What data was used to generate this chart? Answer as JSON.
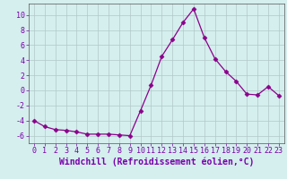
{
  "x": [
    0,
    1,
    2,
    3,
    4,
    5,
    6,
    7,
    8,
    9,
    10,
    11,
    12,
    13,
    14,
    15,
    16,
    17,
    18,
    19,
    20,
    21,
    22,
    23
  ],
  "y": [
    -4,
    -4.8,
    -5.2,
    -5.3,
    -5.5,
    -5.8,
    -5.8,
    -5.8,
    -5.9,
    -6.0,
    -2.7,
    0.7,
    4.5,
    6.7,
    9.0,
    10.8,
    7.0,
    4.2,
    2.5,
    1.2,
    -0.5,
    -0.6,
    0.5,
    -0.7
  ],
  "line_color": "#8B008B",
  "marker": "D",
  "marker_size": 2.5,
  "background_color": "#d5eeee",
  "grid_color": "#b0c8c8",
  "xlabel": "Windchill (Refroidissement éolien,°C)",
  "xlim": [
    -0.5,
    23.5
  ],
  "ylim": [
    -7,
    11.5
  ],
  "yticks": [
    -6,
    -4,
    -2,
    0,
    2,
    4,
    6,
    8,
    10
  ],
  "xticks": [
    0,
    1,
    2,
    3,
    4,
    5,
    6,
    7,
    8,
    9,
    10,
    11,
    12,
    13,
    14,
    15,
    16,
    17,
    18,
    19,
    20,
    21,
    22,
    23
  ],
  "tick_fontsize": 6,
  "xlabel_fontsize": 7
}
